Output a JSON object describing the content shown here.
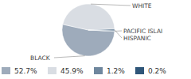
{
  "chart_data": {
    "type": "pie",
    "categories": [
      "BLACK",
      "WHITE",
      "HISPANIC",
      "PACIFIC ISLAI"
    ],
    "values": [
      52.7,
      45.9,
      1.2,
      0.2
    ],
    "value_labels": [
      "52.7%",
      "45.9%",
      "1.2%",
      "0.2%"
    ],
    "colors": [
      "#9eabbb",
      "#d9dde3",
      "#6f879e",
      "#2f5679"
    ],
    "legend": "bottom"
  }
}
